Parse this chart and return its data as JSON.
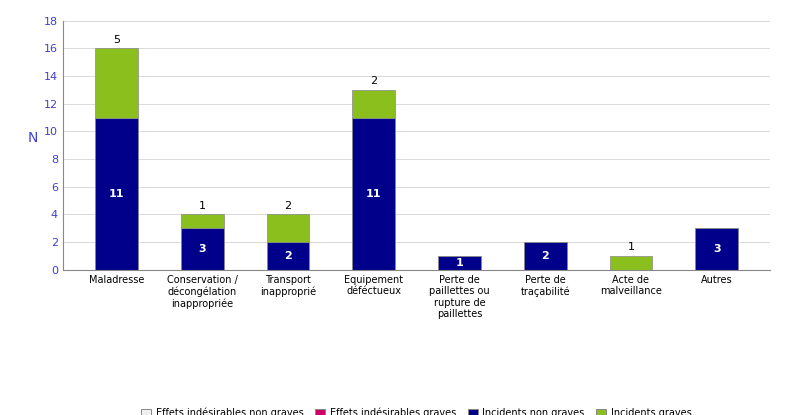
{
  "categories": [
    "Maladresse",
    "Conservation /\ndécongélation\ninappropriée",
    "Transport\ninapproprié",
    "Equipement\ndéféctueux",
    "Perte de\npaillettes ou\nrupture de\npaillettes",
    "Perte de\ntraçabilité",
    "Acte de\nmalveillance",
    "Autres"
  ],
  "incidents_non_graves": [
    11,
    3,
    2,
    11,
    1,
    2,
    0,
    3
  ],
  "incidents_graves": [
    5,
    1,
    2,
    2,
    0,
    0,
    1,
    0
  ],
  "effets_indesirables_non_graves": [
    0,
    0,
    0,
    0,
    0,
    0,
    0,
    0
  ],
  "effets_indesirables_graves": [
    0,
    0,
    0,
    0,
    0,
    0,
    0,
    0
  ],
  "color_incidents_non_graves": "#00008B",
  "color_incidents_graves": "#8BBF1E",
  "color_effets_non_graves": "#f0f0f0",
  "color_effets_graves": "#cc0066",
  "ylabel": "N",
  "ylim": [
    0,
    18
  ],
  "yticks": [
    0,
    2,
    4,
    6,
    8,
    10,
    12,
    14,
    16,
    18
  ],
  "legend_labels": [
    "Effets indésirables non graves",
    "Effets indésirables graves",
    "Incidents non graves",
    "Incidents graves"
  ],
  "ann_ing": [
    11,
    3,
    2,
    11,
    1,
    2,
    null,
    3
  ],
  "ann_ig": [
    5,
    1,
    2,
    2,
    null,
    null,
    1,
    null
  ],
  "ann_ing_inside": [
    true,
    true,
    true,
    true,
    true,
    true,
    false,
    true
  ],
  "ann_ig_inside": [
    false,
    false,
    false,
    false,
    false,
    false,
    false,
    false
  ],
  "axis_color": "#4040cc",
  "tick_color": "#4040cc",
  "background_color": "#ffffff",
  "figsize": [
    7.86,
    4.15
  ],
  "dpi": 100
}
